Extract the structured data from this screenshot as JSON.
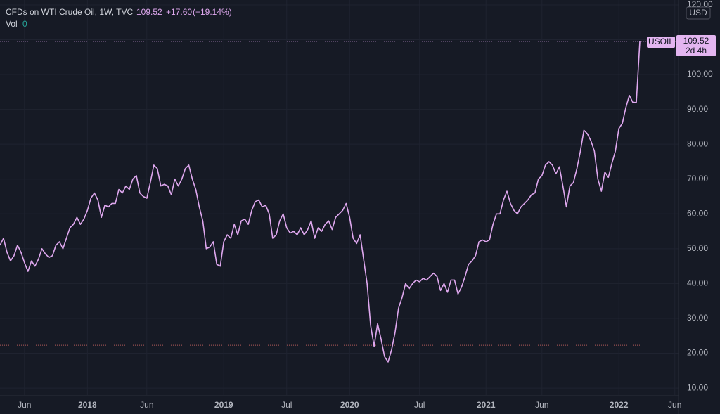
{
  "chart_data": {
    "type": "line",
    "title": "CFDs on WTI Crude Oil, 1W, TVC",
    "legend": {
      "price": "109.52",
      "change": "+17.60",
      "change_pct": "(+19.14%)",
      "volume_label": "Vol",
      "volume": "0"
    },
    "currency": "USD",
    "price_tag": {
      "symbol": "USOIL",
      "price": "109.52",
      "countdown": "2d 4h"
    },
    "color": "#dfa8ef",
    "grid": true,
    "ref_level": 22.3,
    "ylim": [
      8,
      121.4
    ],
    "yticks": [
      {
        "value": 10,
        "label": "10.00"
      },
      {
        "value": 20,
        "label": "20.00"
      },
      {
        "value": 30,
        "label": "30.00"
      },
      {
        "value": 40,
        "label": "40.00"
      },
      {
        "value": 50,
        "label": "50.00"
      },
      {
        "value": 60,
        "label": "60.00"
      },
      {
        "value": 70,
        "label": "70.00"
      },
      {
        "value": 80,
        "label": "80.00"
      },
      {
        "value": 90,
        "label": "90.00"
      },
      {
        "value": 100,
        "label": "100.00"
      },
      {
        "value": 110,
        "label": "110.00"
      },
      {
        "value": 120,
        "label": "120.00"
      }
    ],
    "categories": [
      null,
      null,
      null,
      null,
      null,
      null,
      null,
      "Jun",
      null,
      null,
      null,
      null,
      null,
      null,
      null,
      null,
      null,
      null,
      null,
      null,
      null,
      null,
      null,
      null,
      null,
      "2018",
      null,
      null,
      null,
      null,
      null,
      null,
      null,
      null,
      null,
      null,
      null,
      null,
      null,
      null,
      null,
      null,
      "Jun",
      null,
      null,
      null,
      null,
      null,
      null,
      null,
      null,
      null,
      null,
      null,
      null,
      null,
      null,
      null,
      null,
      null,
      null,
      null,
      null,
      null,
      "2019",
      null,
      null,
      null,
      null,
      null,
      null,
      null,
      null,
      null,
      null,
      null,
      null,
      null,
      null,
      null,
      null,
      null,
      "Jul",
      null,
      null,
      null,
      null,
      null,
      null,
      null,
      null,
      null,
      null,
      null,
      null,
      null,
      null,
      null,
      null,
      null,
      "2020",
      null,
      null,
      null,
      null,
      null,
      null,
      null,
      null,
      null,
      null,
      null,
      null,
      null,
      null,
      null,
      null,
      null,
      null,
      null,
      "Jul",
      null,
      null,
      null,
      null,
      null,
      null,
      null,
      null,
      null,
      null,
      null,
      null,
      null,
      null,
      null,
      null,
      null,
      null,
      "2021",
      null,
      null,
      null,
      null,
      null,
      null,
      null,
      null,
      null,
      null,
      null,
      null,
      null,
      null,
      null,
      "Jun",
      null,
      null,
      null,
      null,
      null,
      null,
      null,
      null,
      null,
      null,
      null,
      null,
      null,
      null,
      null,
      null,
      null,
      null,
      null,
      null,
      null,
      "2022",
      null,
      null,
      null,
      null,
      null,
      null,
      null,
      null,
      null,
      null,
      null,
      null,
      null,
      null,
      null,
      "Jun",
      null
    ],
    "values": [
      51,
      53,
      49,
      46.5,
      48,
      51,
      49,
      46,
      43.5,
      46.5,
      45,
      47,
      50,
      48.5,
      47.5,
      48,
      51,
      52,
      50,
      53,
      56,
      57,
      59,
      57,
      58.5,
      61,
      64.5,
      66,
      64,
      59,
      62.5,
      62,
      63,
      63,
      67,
      66,
      68,
      67,
      70,
      71,
      66,
      65,
      64.5,
      69,
      74,
      73,
      68,
      68.5,
      68,
      65.5,
      70,
      68,
      70,
      73,
      74,
      70,
      67,
      62,
      58,
      50,
      50.5,
      52,
      45.5,
      45,
      52,
      54,
      53,
      57,
      54,
      58,
      58.5,
      57,
      61,
      63.5,
      64,
      62,
      62.5,
      60,
      53,
      54,
      58,
      60,
      56,
      54.5,
      55,
      54,
      56,
      54,
      55.5,
      58,
      53,
      56,
      55,
      57,
      58,
      55.5,
      59,
      60,
      61,
      63,
      59,
      53,
      51.5,
      54,
      47,
      40,
      28,
      22,
      28.5,
      24,
      19,
      17.5,
      21,
      26,
      33,
      36,
      40,
      38.5,
      40,
      41,
      40.5,
      41.5,
      41,
      42,
      43,
      42,
      38,
      40,
      37.5,
      41,
      41,
      37,
      39,
      42,
      45.5,
      46.5,
      48,
      52,
      52.5,
      52,
      52.5,
      57,
      60,
      60,
      64,
      66.5,
      63,
      61,
      60,
      62,
      63,
      64,
      65.5,
      66,
      70,
      71,
      74,
      75,
      74,
      71.5,
      73.5,
      68,
      62,
      68,
      69,
      73,
      78,
      84,
      83,
      81,
      78,
      70,
      66.5,
      72,
      70.5,
      74.5,
      78,
      84.5,
      86,
      90.5,
      94,
      92,
      92,
      109.52,
      null,
      null,
      null,
      null,
      null,
      null,
      null,
      null,
      null,
      null,
      null
    ]
  }
}
